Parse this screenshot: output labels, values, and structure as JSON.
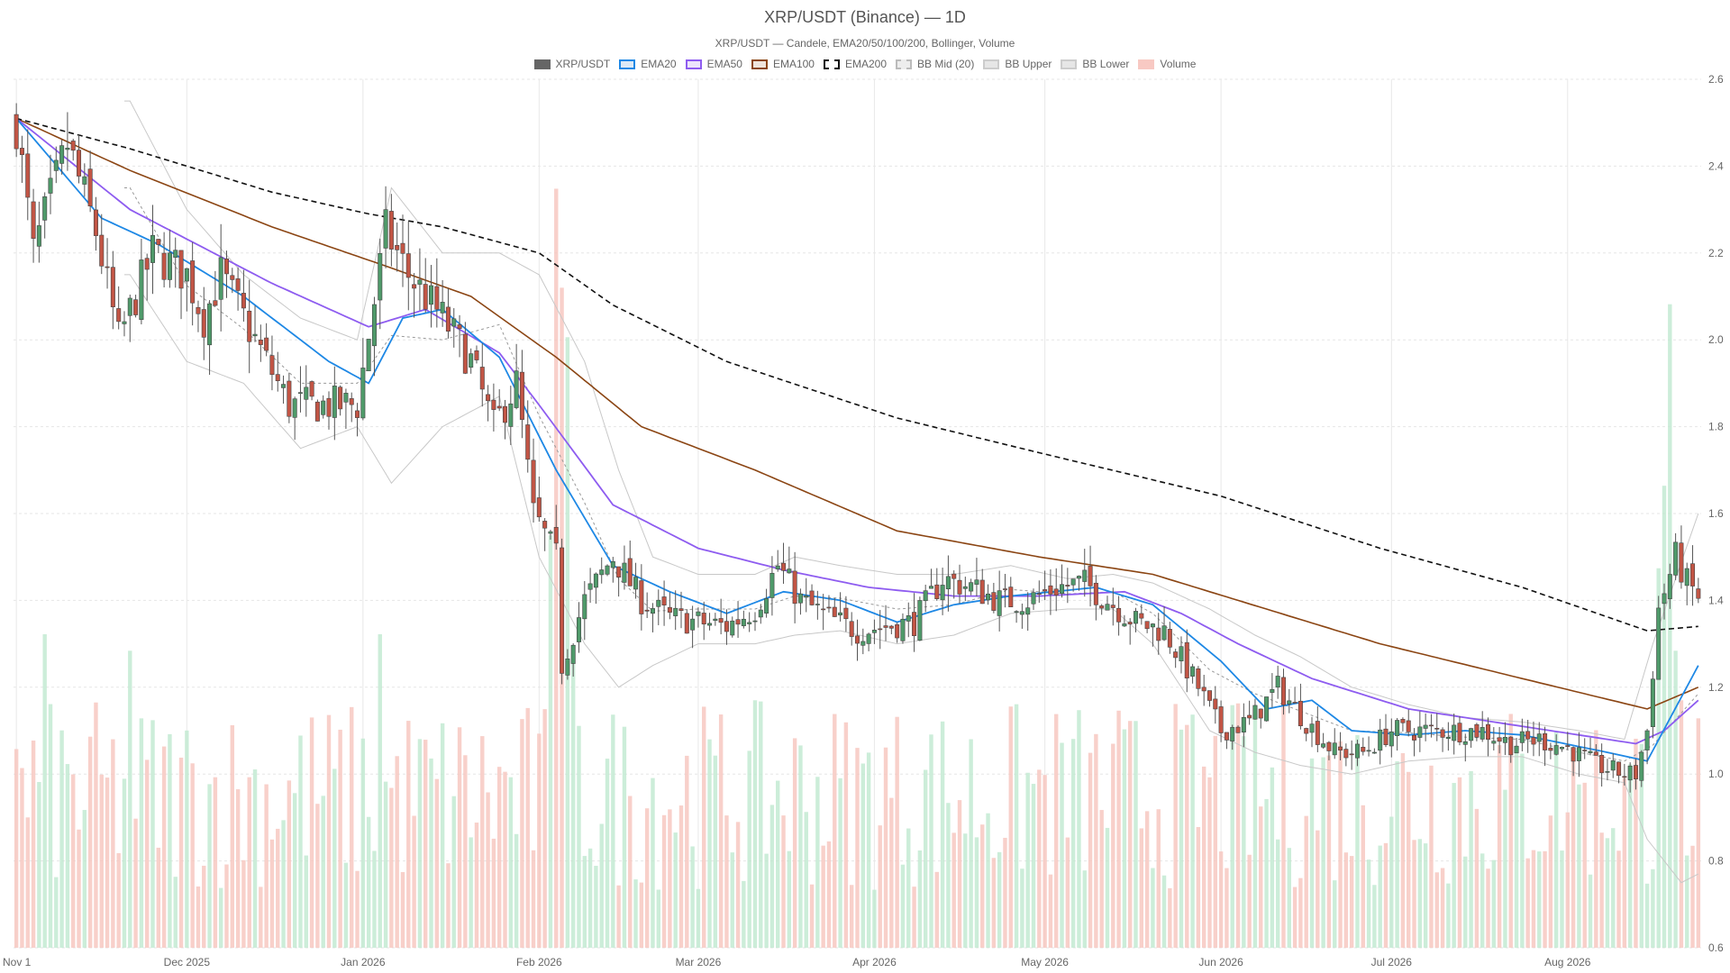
{
  "title": "XRP/USDT (Binance) — 1D",
  "subtitle": "XRP/USDT — Candele, EMA20/50/100/200, Bollinger, Volume",
  "legend": [
    {
      "label": "XRP/USDT",
      "fill": "#666666",
      "stroke": "#666666",
      "dash": false
    },
    {
      "label": "EMA20",
      "fill": "#dbe9f6",
      "stroke": "#1e88e5",
      "dash": false
    },
    {
      "label": "EMA50",
      "fill": "#ece4fb",
      "stroke": "#8e5cf0",
      "dash": false
    },
    {
      "label": "EMA100",
      "fill": "#efe3da",
      "stroke": "#8b4513",
      "dash": false
    },
    {
      "label": "EMA200",
      "fill": "#ffffff",
      "stroke": "#111111",
      "dash": true
    },
    {
      "label": "BB Mid (20)",
      "fill": "#ededed",
      "stroke": "#bbbbbb",
      "dash": true
    },
    {
      "label": "BB Upper",
      "fill": "#e6e6e6",
      "stroke": "#cccccc",
      "dash": false
    },
    {
      "label": "BB Lower",
      "fill": "#e6e6e6",
      "stroke": "#cccccc",
      "dash": false
    },
    {
      "label": "Volume",
      "fill": "#f8c9c3",
      "stroke": "#f8c9c3",
      "dash": false
    }
  ],
  "colors": {
    "up": "#4f9a6a",
    "down": "#c25545",
    "vol_up": "#bfe8cf",
    "vol_down": "#f6c4bd",
    "ema20": "#1e88e5",
    "ema50": "#8e5cf0",
    "ema100": "#8b4513",
    "ema200": "#111111",
    "bb": "#c8c8c8",
    "bb_mid": "#999999"
  },
  "chart_data": {
    "type": "candlestick",
    "x_ticks": [
      {
        "label": "Nov 1",
        "t": 0
      },
      {
        "label": "Dec 2025",
        "t": 30
      },
      {
        "label": "Jan 2026",
        "t": 61
      },
      {
        "label": "Feb 2026",
        "t": 92
      },
      {
        "label": "Mar 2026",
        "t": 120
      },
      {
        "label": "Apr 2026",
        "t": 151
      },
      {
        "label": "May 2026",
        "t": 181
      },
      {
        "label": "Jun 2026",
        "t": 212
      },
      {
        "label": "Jul 2026",
        "t": 242
      },
      {
        "label": "Aug 2026",
        "t": 273
      }
    ],
    "y_ticks": [
      "2.6",
      "2.4",
      "2.2",
      "2.0",
      "1.8",
      "1.6",
      "1.4",
      "1.2",
      "1.0",
      "0.8",
      "0.6"
    ],
    "ylim": [
      0.6,
      2.6
    ],
    "n_days": 297,
    "close_anchors": [
      [
        0,
        2.5
      ],
      [
        3,
        2.2
      ],
      [
        9,
        2.45
      ],
      [
        14,
        2.25
      ],
      [
        18,
        2.0
      ],
      [
        24,
        2.2
      ],
      [
        30,
        2.15
      ],
      [
        33,
        2.05
      ],
      [
        36,
        2.15
      ],
      [
        42,
        2.0
      ],
      [
        48,
        1.85
      ],
      [
        54,
        1.85
      ],
      [
        60,
        1.85
      ],
      [
        65,
        2.25
      ],
      [
        69,
        2.15
      ],
      [
        75,
        2.05
      ],
      [
        80,
        1.95
      ],
      [
        84,
        1.8
      ],
      [
        88,
        1.9
      ],
      [
        91,
        1.6
      ],
      [
        95,
        1.5
      ],
      [
        96,
        1.25
      ],
      [
        100,
        1.4
      ],
      [
        105,
        1.5
      ],
      [
        110,
        1.4
      ],
      [
        115,
        1.36
      ],
      [
        120,
        1.35
      ],
      [
        125,
        1.34
      ],
      [
        130,
        1.38
      ],
      [
        134,
        1.48
      ],
      [
        138,
        1.4
      ],
      [
        143,
        1.36
      ],
      [
        148,
        1.33
      ],
      [
        153,
        1.34
      ],
      [
        158,
        1.35
      ],
      [
        163,
        1.45
      ],
      [
        168,
        1.43
      ],
      [
        173,
        1.4
      ],
      [
        178,
        1.4
      ],
      [
        183,
        1.43
      ],
      [
        188,
        1.44
      ],
      [
        192,
        1.4
      ],
      [
        197,
        1.35
      ],
      [
        202,
        1.33
      ],
      [
        208,
        1.2
      ],
      [
        212,
        1.1
      ],
      [
        217,
        1.12
      ],
      [
        222,
        1.2
      ],
      [
        227,
        1.12
      ],
      [
        232,
        1.05
      ],
      [
        237,
        1.05
      ],
      [
        242,
        1.1
      ],
      [
        247,
        1.1
      ],
      [
        252,
        1.1
      ],
      [
        258,
        1.1
      ],
      [
        263,
        1.07
      ],
      [
        268,
        1.08
      ],
      [
        273,
        1.06
      ],
      [
        278,
        1.02
      ],
      [
        283,
        1.0
      ],
      [
        285,
        1.0
      ],
      [
        287,
        1.1
      ],
      [
        289,
        1.38
      ],
      [
        292,
        1.5
      ],
      [
        294,
        1.44
      ],
      [
        296,
        1.41
      ]
    ],
    "bb_upper_anchors": [
      [
        20,
        2.55
      ],
      [
        30,
        2.3
      ],
      [
        40,
        2.15
      ],
      [
        50,
        2.05
      ],
      [
        60,
        2.0
      ],
      [
        66,
        2.35
      ],
      [
        75,
        2.2
      ],
      [
        85,
        2.2
      ],
      [
        92,
        2.15
      ],
      [
        100,
        1.95
      ],
      [
        106,
        1.7
      ],
      [
        112,
        1.5
      ],
      [
        120,
        1.46
      ],
      [
        130,
        1.46
      ],
      [
        137,
        1.5
      ],
      [
        145,
        1.48
      ],
      [
        155,
        1.46
      ],
      [
        165,
        1.46
      ],
      [
        175,
        1.48
      ],
      [
        185,
        1.45
      ],
      [
        193,
        1.46
      ],
      [
        200,
        1.44
      ],
      [
        210,
        1.38
      ],
      [
        218,
        1.32
      ],
      [
        226,
        1.27
      ],
      [
        235,
        1.2
      ],
      [
        245,
        1.16
      ],
      [
        255,
        1.13
      ],
      [
        265,
        1.12
      ],
      [
        275,
        1.1
      ],
      [
        283,
        1.08
      ],
      [
        288,
        1.3
      ],
      [
        296,
        1.6
      ]
    ],
    "bb_lower_anchors": [
      [
        20,
        2.15
      ],
      [
        30,
        1.95
      ],
      [
        40,
        1.9
      ],
      [
        50,
        1.75
      ],
      [
        60,
        1.8
      ],
      [
        66,
        1.67
      ],
      [
        75,
        1.8
      ],
      [
        85,
        1.87
      ],
      [
        92,
        1.5
      ],
      [
        100,
        1.3
      ],
      [
        106,
        1.2
      ],
      [
        112,
        1.25
      ],
      [
        120,
        1.3
      ],
      [
        130,
        1.3
      ],
      [
        137,
        1.32
      ],
      [
        145,
        1.33
      ],
      [
        155,
        1.3
      ],
      [
        165,
        1.32
      ],
      [
        175,
        1.37
      ],
      [
        185,
        1.38
      ],
      [
        193,
        1.38
      ],
      [
        200,
        1.3
      ],
      [
        210,
        1.1
      ],
      [
        218,
        1.05
      ],
      [
        226,
        1.02
      ],
      [
        235,
        1.0
      ],
      [
        245,
        1.03
      ],
      [
        255,
        1.04
      ],
      [
        265,
        1.04
      ],
      [
        275,
        1.0
      ],
      [
        283,
        0.98
      ],
      [
        287,
        0.85
      ],
      [
        293,
        0.75
      ],
      [
        296,
        0.77
      ]
    ],
    "ema200_anchors": [
      [
        0,
        2.51
      ],
      [
        20,
        2.44
      ],
      [
        45,
        2.34
      ],
      [
        62,
        2.29
      ],
      [
        75,
        2.26
      ],
      [
        92,
        2.2
      ],
      [
        105,
        2.08
      ],
      [
        125,
        1.95
      ],
      [
        155,
        1.82
      ],
      [
        180,
        1.74
      ],
      [
        212,
        1.64
      ],
      [
        240,
        1.52
      ],
      [
        265,
        1.43
      ],
      [
        287,
        1.33
      ],
      [
        296,
        1.34
      ]
    ],
    "ema100_anchors": [
      [
        0,
        2.51
      ],
      [
        20,
        2.39
      ],
      [
        45,
        2.26
      ],
      [
        65,
        2.17
      ],
      [
        80,
        2.1
      ],
      [
        95,
        1.96
      ],
      [
        110,
        1.8
      ],
      [
        130,
        1.7
      ],
      [
        155,
        1.56
      ],
      [
        180,
        1.5
      ],
      [
        200,
        1.46
      ],
      [
        220,
        1.38
      ],
      [
        240,
        1.3
      ],
      [
        265,
        1.22
      ],
      [
        287,
        1.15
      ],
      [
        296,
        1.2
      ]
    ],
    "ema50_anchors": [
      [
        0,
        2.51
      ],
      [
        20,
        2.3
      ],
      [
        45,
        2.13
      ],
      [
        62,
        2.03
      ],
      [
        72,
        2.07
      ],
      [
        85,
        1.97
      ],
      [
        92,
        1.85
      ],
      [
        105,
        1.62
      ],
      [
        120,
        1.52
      ],
      [
        135,
        1.47
      ],
      [
        150,
        1.43
      ],
      [
        165,
        1.41
      ],
      [
        180,
        1.41
      ],
      [
        195,
        1.42
      ],
      [
        205,
        1.37
      ],
      [
        215,
        1.3
      ],
      [
        228,
        1.22
      ],
      [
        245,
        1.15
      ],
      [
        265,
        1.11
      ],
      [
        285,
        1.07
      ],
      [
        290,
        1.1
      ],
      [
        296,
        1.17
      ]
    ],
    "ema20_anchors": [
      [
        0,
        2.51
      ],
      [
        15,
        2.28
      ],
      [
        25,
        2.22
      ],
      [
        40,
        2.1
      ],
      [
        55,
        1.95
      ],
      [
        62,
        1.9
      ],
      [
        68,
        2.05
      ],
      [
        75,
        2.07
      ],
      [
        85,
        1.96
      ],
      [
        95,
        1.7
      ],
      [
        105,
        1.48
      ],
      [
        115,
        1.42
      ],
      [
        125,
        1.37
      ],
      [
        135,
        1.42
      ],
      [
        145,
        1.4
      ],
      [
        155,
        1.35
      ],
      [
        165,
        1.39
      ],
      [
        175,
        1.41
      ],
      [
        190,
        1.43
      ],
      [
        200,
        1.39
      ],
      [
        212,
        1.26
      ],
      [
        220,
        1.15
      ],
      [
        228,
        1.17
      ],
      [
        235,
        1.1
      ],
      [
        245,
        1.09
      ],
      [
        255,
        1.1
      ],
      [
        265,
        1.09
      ],
      [
        280,
        1.05
      ],
      [
        287,
        1.03
      ],
      [
        296,
        1.25
      ]
    ],
    "volume": {
      "ylim": [
        0,
        5.0
      ],
      "spikes": [
        [
          95,
          4.6
        ],
        [
          96,
          4.0
        ],
        [
          97,
          3.7
        ],
        [
          98,
          1.8
        ],
        [
          94,
          2.5
        ],
        [
          64,
          1.9
        ],
        [
          276,
          1.0
        ],
        [
          289,
          2.3
        ],
        [
          290,
          2.8
        ],
        [
          291,
          3.9
        ],
        [
          292,
          1.8
        ],
        [
          293,
          1.5
        ],
        [
          20,
          1.8
        ],
        [
          5,
          1.9
        ]
      ]
    }
  }
}
